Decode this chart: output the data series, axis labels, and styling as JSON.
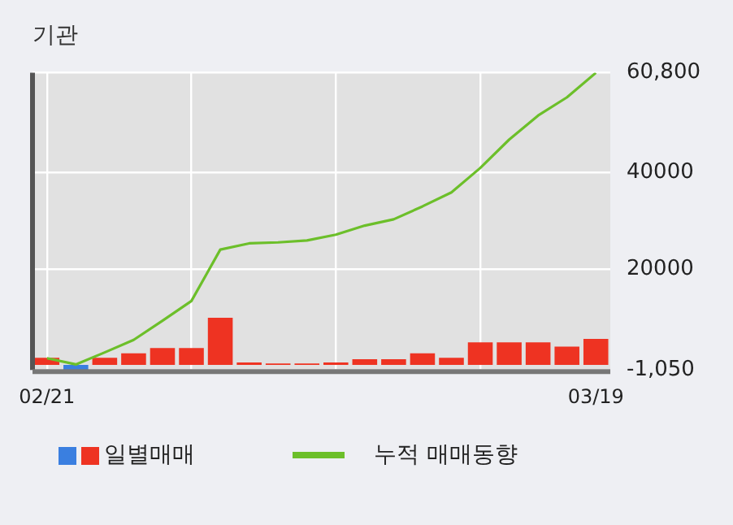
{
  "chart_data": {
    "type": "bar",
    "title": "기관",
    "categories": [
      "02/21",
      null,
      null,
      null,
      null,
      null,
      null,
      null,
      null,
      null,
      null,
      null,
      null,
      null,
      null,
      null,
      null,
      null,
      null,
      "03/19"
    ],
    "series": [
      {
        "name": "일별매매",
        "colors": [
          "#ee3322",
          "#3a7fe0",
          "#ee3322",
          "#ee3322",
          "#ee3322",
          "#ee3322",
          "#ee3322",
          "#ee3322",
          "#ee3322",
          "#ee3322",
          "#ee3322",
          "#ee3322",
          "#ee3322",
          "#ee3322",
          "#ee3322",
          "#ee3322",
          "#ee3322",
          "#ee3322",
          "#ee3322",
          "#ee3322"
        ],
        "values": [
          1500,
          -1050,
          1500,
          2400,
          3500,
          3500,
          9800,
          500,
          300,
          300,
          500,
          1200,
          1200,
          2400,
          1500,
          4700,
          4700,
          4700,
          3800,
          5400
        ]
      },
      {
        "name": "누적 매매동향",
        "type": "line",
        "color": "#6cbf2a",
        "values": [
          1400,
          100,
          2600,
          5200,
          9200,
          13300,
          24000,
          25300,
          25500,
          25900,
          27100,
          29000,
          30300,
          33000,
          35900,
          41000,
          46900,
          51900,
          55700,
          60800
        ]
      }
    ],
    "ylim": [
      -1050,
      60800
    ],
    "yticks": [
      {
        "value": -1050,
        "label": "-1,050"
      },
      20000,
      40000,
      {
        "value": 60800,
        "label": "60,800"
      }
    ],
    "grid": true,
    "legend": "bottom",
    "marker": "none",
    "line_style": "solid"
  }
}
